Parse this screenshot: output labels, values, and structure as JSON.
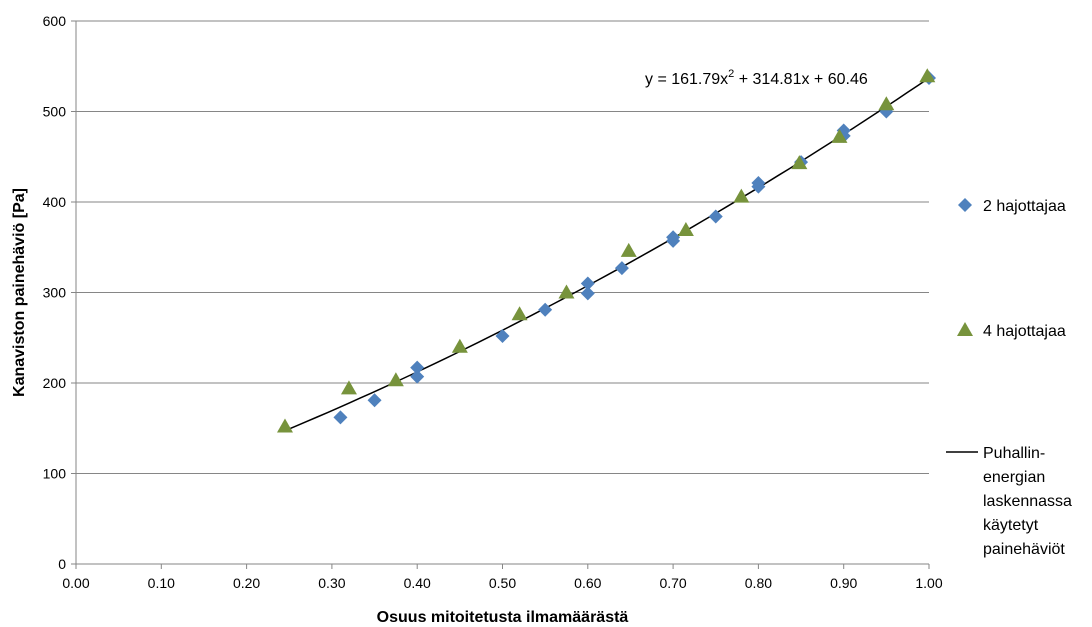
{
  "chart_data": {
    "type": "scatter",
    "xlabel": "Osuus mitoitetusta ilmamäärästä",
    "ylabel": "Kanaviston painehäviö [Pa]",
    "xlim": [
      0,
      1
    ],
    "ylim": [
      0,
      600
    ],
    "x_ticks": [
      "0.00",
      "0.10",
      "0.20",
      "0.30",
      "0.40",
      "0.50",
      "0.60",
      "0.70",
      "0.80",
      "0.90",
      "1.00"
    ],
    "y_ticks": [
      "0",
      "100",
      "200",
      "300",
      "400",
      "500",
      "600"
    ],
    "grid": "horizontal",
    "legend_position": "right",
    "series": [
      {
        "name": "2 hajottajaa",
        "marker": "diamond",
        "color": "#4F81BD",
        "points": [
          [
            0.31,
            162
          ],
          [
            0.35,
            181
          ],
          [
            0.4,
            217
          ],
          [
            0.4,
            207
          ],
          [
            0.5,
            252
          ],
          [
            0.55,
            281
          ],
          [
            0.6,
            310
          ],
          [
            0.6,
            299
          ],
          [
            0.64,
            327
          ],
          [
            0.7,
            361
          ],
          [
            0.7,
            357
          ],
          [
            0.75,
            384
          ],
          [
            0.8,
            421
          ],
          [
            0.8,
            417
          ],
          [
            0.85,
            444
          ],
          [
            0.9,
            479
          ],
          [
            0.9,
            473
          ],
          [
            0.95,
            500
          ],
          [
            1.0,
            537
          ]
        ]
      },
      {
        "name": "4 hajottajaa",
        "marker": "triangle",
        "color": "#77933C",
        "points": [
          [
            0.245,
            152
          ],
          [
            0.32,
            194
          ],
          [
            0.375,
            203
          ],
          [
            0.45,
            240
          ],
          [
            0.52,
            276
          ],
          [
            0.575,
            300
          ],
          [
            0.648,
            346
          ],
          [
            0.715,
            369
          ],
          [
            0.78,
            406
          ],
          [
            0.848,
            443
          ],
          [
            0.895,
            472
          ],
          [
            0.95,
            508
          ],
          [
            0.998,
            539
          ]
        ]
      },
      {
        "name": "Puhallin-\nenergian\nlaskennassa\nkäytetyt\npainehäviöt",
        "type": "line",
        "color": "#000000",
        "fit": {
          "a": 161.79,
          "b": 314.81,
          "c": 60.46,
          "x_range": [
            0.245,
            1.0
          ]
        }
      }
    ],
    "annotations": [
      {
        "text": "y = 161.79x",
        "sup": "2",
        "rest": " + 314.81x + 60.46"
      }
    ]
  }
}
